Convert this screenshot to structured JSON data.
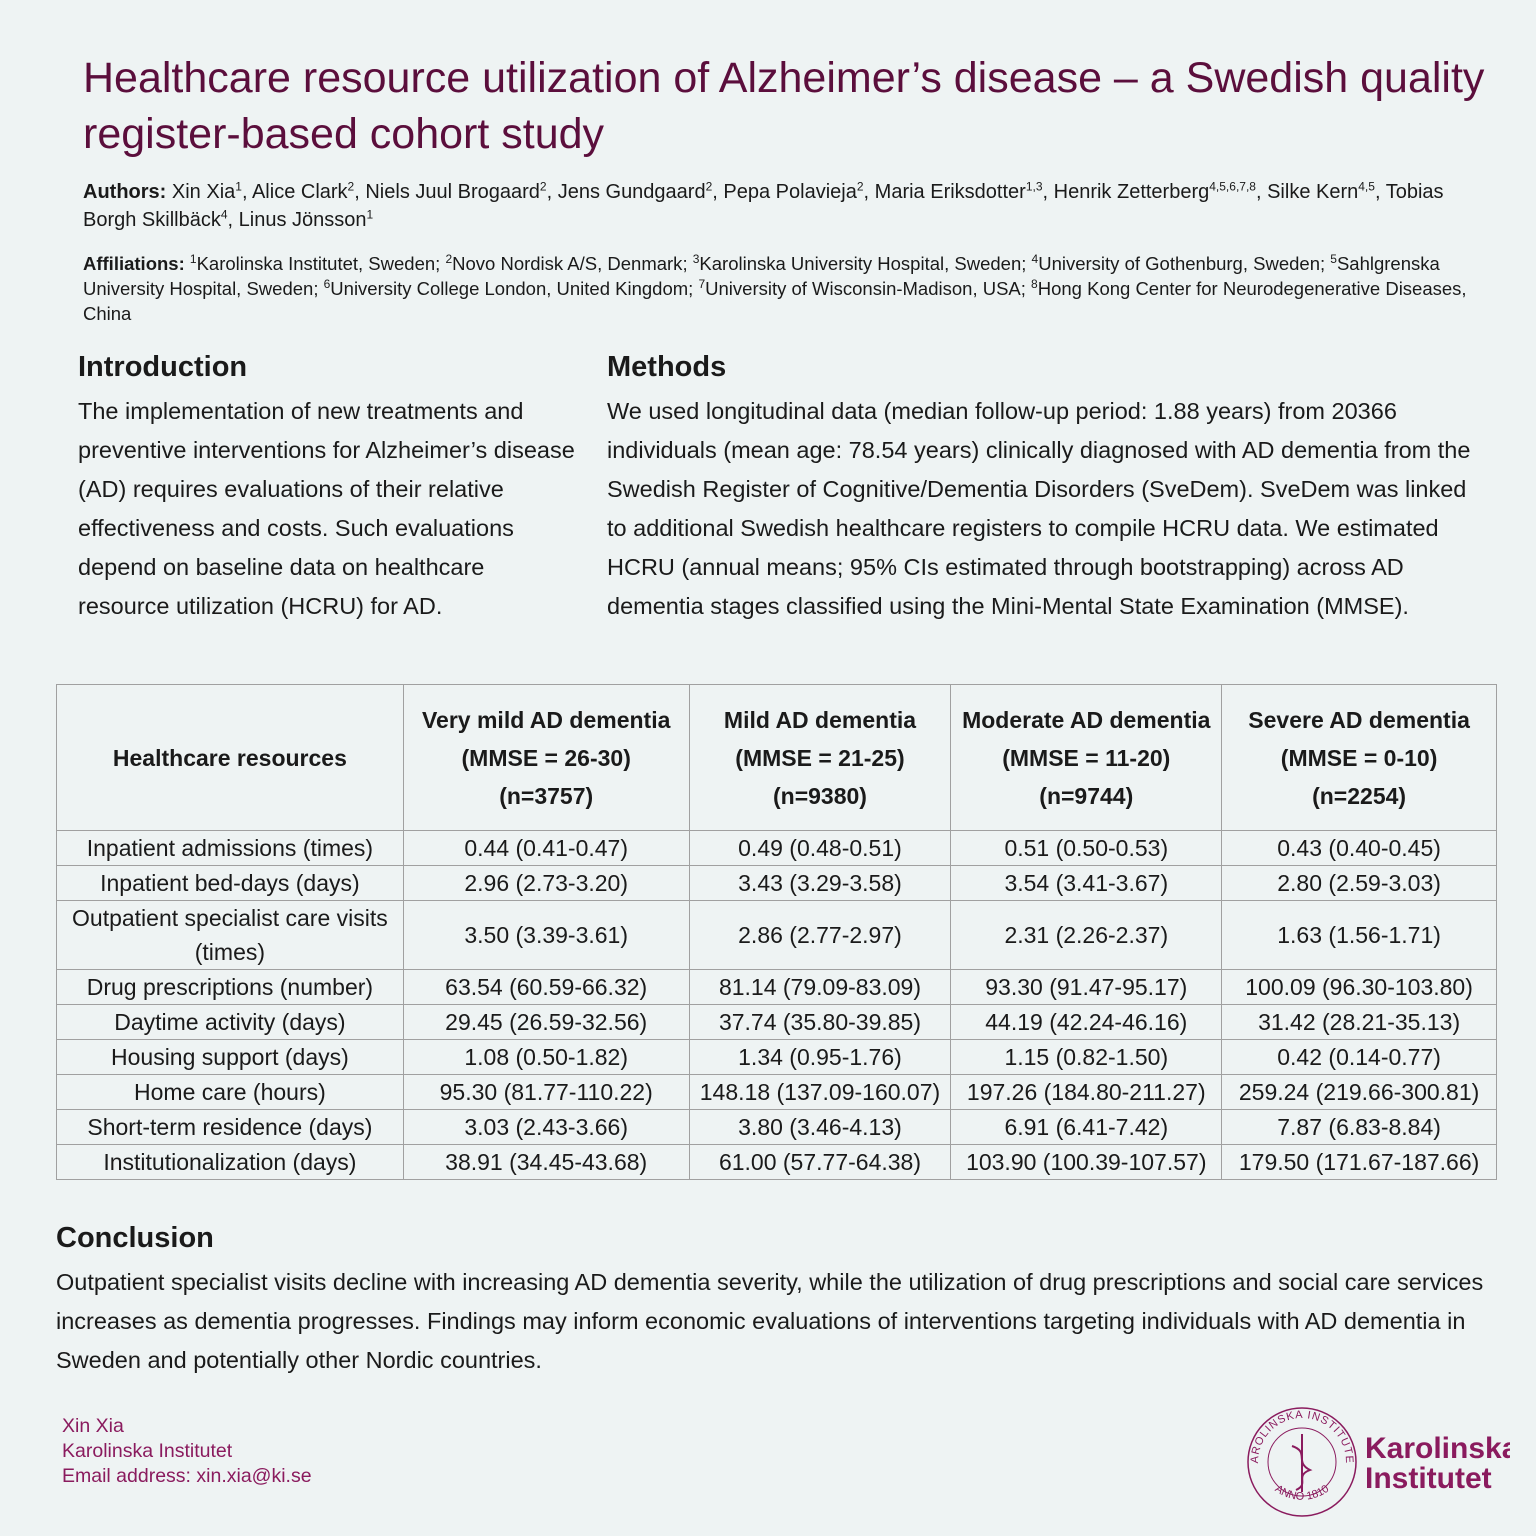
{
  "header": {
    "title": "Healthcare resource utilization of Alzheimer’s disease – a Swedish quality register-based cohort study",
    "authors_label": "Authors:",
    "author_separator": ", ",
    "authors": [
      {
        "name": "Xin Xia",
        "sup": "1"
      },
      {
        "name": "Alice Clark",
        "sup": "2"
      },
      {
        "name": "Niels Juul Brogaard",
        "sup": "2"
      },
      {
        "name": "Jens Gundgaard",
        "sup": "2"
      },
      {
        "name": "Pepa Polavieja",
        "sup": "2"
      },
      {
        "name": "Maria Eriksdotter",
        "sup": "1,3"
      },
      {
        "name": "Henrik Zetterberg",
        "sup": "4,5,6,7,8"
      },
      {
        "name": "Silke Kern",
        "sup": "4,5"
      },
      {
        "name": "Tobias Borgh Skillbäck",
        "sup": "4"
      },
      {
        "name": "Linus Jönsson",
        "sup": "1"
      }
    ],
    "affiliations_label": "Affiliations:",
    "affiliation_separator": "; ",
    "affiliations": [
      {
        "num": "1",
        "text": "Karolinska Institutet, Sweden"
      },
      {
        "num": "2",
        "text": "Novo Nordisk A/S, Denmark"
      },
      {
        "num": "3",
        "text": "Karolinska University Hospital, Sweden"
      },
      {
        "num": "4",
        "text": "University of Gothenburg, Sweden"
      },
      {
        "num": "5",
        "text": "Sahlgrenska University Hospital, Sweden"
      },
      {
        "num": "6",
        "text": "University College London, United Kingdom"
      },
      {
        "num": "7",
        "text": "University of Wisconsin-Madison, USA"
      },
      {
        "num": "8",
        "text": "Hong Kong Center for Neurodegenerative Diseases, China"
      }
    ]
  },
  "introduction": {
    "heading": "Introduction",
    "text": "The implementation of new treatments and preventive interventions for Alzheimer’s disease (AD) requires evaluations of their relative effectiveness and costs. Such evaluations depend on baseline data on healthcare resource utilization (HCRU) for AD."
  },
  "methods": {
    "heading": "Methods",
    "text": "We used longitudinal data (median follow-up period: 1.88 years) from 20366 individuals (mean age: 78.54 years) clinically diagnosed with AD dementia from the Swedish Register of Cognitive/Dementia Disorders (SveDem). SveDem was linked to additional Swedish healthcare registers to compile HCRU data. We estimated HCRU (annual means; 95% CIs estimated through bootstrapping) across AD dementia stages classified using the Mini-Mental State Examination (MMSE)."
  },
  "table": {
    "header": [
      [
        "Healthcare resources"
      ],
      [
        "Very mild AD dementia",
        "(MMSE = 26-30)",
        "(n=3757)"
      ],
      [
        "Mild AD dementia",
        "(MMSE = 21-25)",
        "(n=9380)"
      ],
      [
        "Moderate AD dementia",
        "(MMSE = 11-20)",
        "(n=9744)"
      ],
      [
        "Severe AD dementia",
        "(MMSE = 0-10)",
        "(n=2254)"
      ]
    ],
    "rows": [
      [
        "Inpatient admissions (times)",
        "0.44 (0.41-0.47)",
        "0.49 (0.48-0.51)",
        "0.51 (0.50-0.53)",
        "0.43 (0.40-0.45)"
      ],
      [
        "Inpatient bed-days (days)",
        "2.96 (2.73-3.20)",
        "3.43 (3.29-3.58)",
        "3.54 (3.41-3.67)",
        "2.80 (2.59-3.03)"
      ],
      [
        "Outpatient specialist care visits (times)",
        "3.50 (3.39-3.61)",
        "2.86 (2.77-2.97)",
        "2.31 (2.26-2.37)",
        "1.63 (1.56-1.71)"
      ],
      [
        "Drug prescriptions (number)",
        "63.54 (60.59-66.32)",
        "81.14 (79.09-83.09)",
        "93.30 (91.47-95.17)",
        "100.09 (96.30-103.80)"
      ],
      [
        "Daytime activity (days)",
        "29.45 (26.59-32.56)",
        "37.74 (35.80-39.85)",
        "44.19 (42.24-46.16)",
        "31.42 (28.21-35.13)"
      ],
      [
        "Housing support (days)",
        "1.08 (0.50-1.82)",
        "1.34 (0.95-1.76)",
        "1.15 (0.82-1.50)",
        "0.42 (0.14-0.77)"
      ],
      [
        "Home care (hours)",
        "95.30 (81.77-110.22)",
        "148.18 (137.09-160.07)",
        "197.26 (184.80-211.27)",
        "259.24 (219.66-300.81)"
      ],
      [
        "Short-term residence (days)",
        "3.03 (2.43-3.66)",
        "3.80 (3.46-4.13)",
        "6.91 (6.41-7.42)",
        "7.87 (6.83-8.84)"
      ],
      [
        "Institutionalization (days)",
        "38.91 (34.45-43.68)",
        "61.00 (57.77-64.38)",
        "103.90 (100.39-107.57)",
        "179.50 (171.67-187.66)"
      ]
    ]
  },
  "conclusion": {
    "heading": "Conclusion",
    "text": "Outpatient specialist visits decline with increasing AD dementia severity, while the utilization of drug prescriptions and social care services increases as dementia progresses. Findings may inform economic evaluations of interventions targeting individuals with AD dementia in Sweden and potentially other Nordic countries."
  },
  "footer": {
    "contact": [
      "Xin Xia",
      "Karolinska Institutet",
      "Email address: xin.xia@ki.se"
    ],
    "logo": {
      "seal_top": "KAROLINSKA INSTITUTET",
      "seal_bottom": "ANNO 1810",
      "name": [
        "Karolinska",
        "Institutet"
      ]
    }
  }
}
